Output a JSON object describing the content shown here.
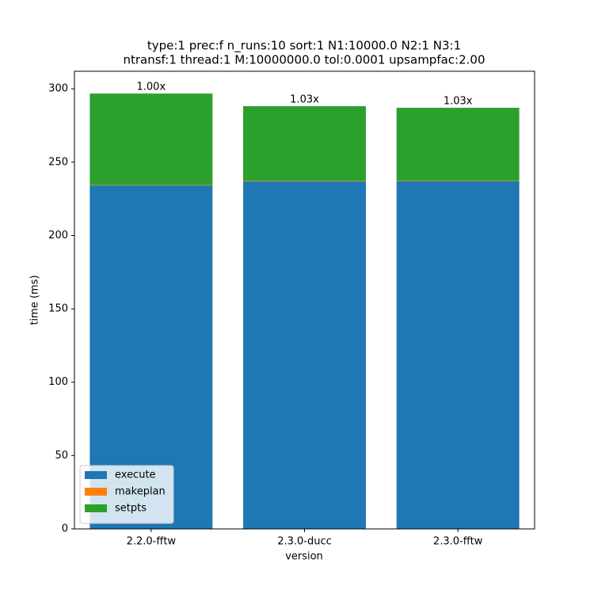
{
  "chart_data": {
    "type": "bar",
    "stacked": true,
    "title": [
      "type:1 prec:f n_runs:10 sort:1 N1:10000.0 N2:1 N3:1",
      "ntransf:1 thread:1 M:10000000.0 tol:0.0001 upsampfac:2.00"
    ],
    "x_label": "version",
    "y_label": "time (ms)",
    "categories": [
      "2.2.0-fftw",
      "2.3.0-ducc",
      "2.3.0-fftw"
    ],
    "series": [
      {
        "name": "execute",
        "color": "#1f77b4",
        "values": [
          234.2,
          236.9,
          237.0
        ]
      },
      {
        "name": "makeplan",
        "color": "#ff7f0e",
        "values": [
          0.3,
          0.3,
          0.3
        ]
      },
      {
        "name": "setpts",
        "color": "#2ca02c",
        "values": [
          62.3,
          51.0,
          49.8
        ]
      }
    ],
    "annotations": [
      "1.00x",
      "1.03x",
      "1.03x"
    ],
    "ylim": [
      0,
      312
    ],
    "yticks": [
      0,
      50,
      100,
      150,
      200,
      250,
      300
    ],
    "legend": "lower left"
  }
}
